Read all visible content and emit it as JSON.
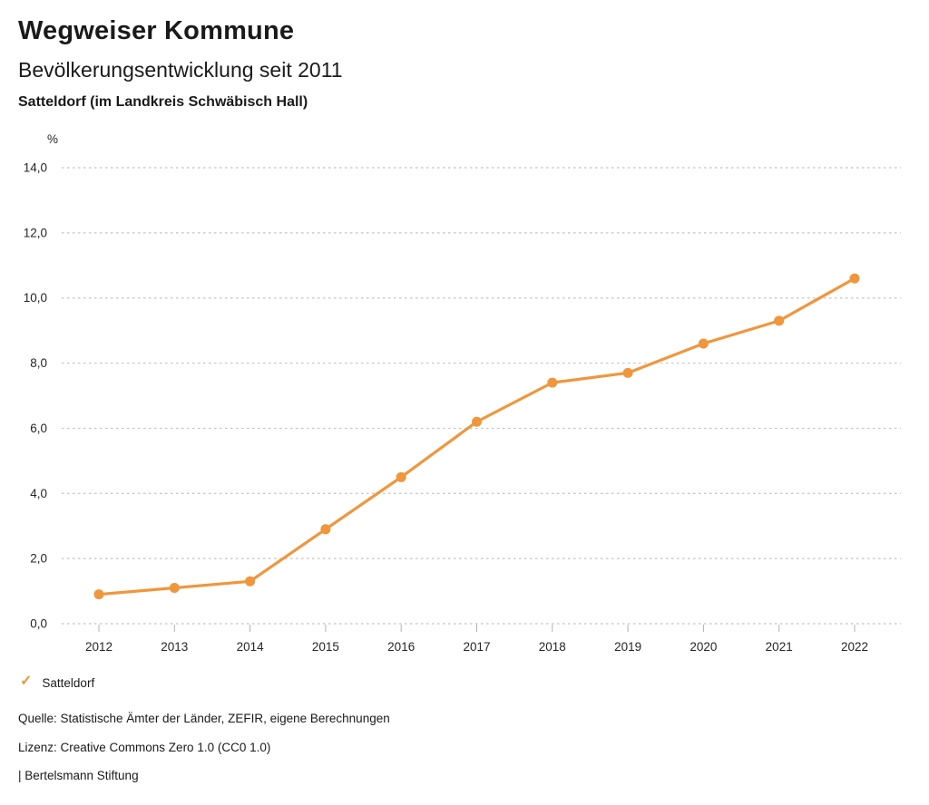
{
  "header": {
    "title": "Wegweiser Kommune",
    "subtitle": "Bevölkerungsentwicklung seit 2011",
    "location_line": "Satteldorf (im Landkreis Schwäbisch Hall)"
  },
  "chart_data": {
    "type": "line",
    "title": "Bevölkerungsentwicklung seit 2011",
    "subtitle": "Satteldorf (im Landkreis Schwäbisch Hall)",
    "ylabel": "%",
    "x": [
      2012,
      2013,
      2014,
      2015,
      2016,
      2017,
      2018,
      2019,
      2020,
      2021,
      2022
    ],
    "series": [
      {
        "name": "Satteldorf",
        "color": "#f0963c",
        "values": [
          0.9,
          1.1,
          1.3,
          2.9,
          4.5,
          6.2,
          7.4,
          7.7,
          8.6,
          9.3,
          10.6
        ]
      }
    ],
    "ylim": [
      0,
      14
    ],
    "ytick_step": 2,
    "ytick_labels": [
      "0,0",
      "2,0",
      "4,0",
      "6,0",
      "8,0",
      "10,0",
      "12,0",
      "14,0"
    ],
    "grid": "horizontal-dotted",
    "legend_position": "bottom-left"
  },
  "legend": {
    "items": [
      {
        "icon": "check-icon",
        "label": "Satteldorf",
        "color": "#f0963c"
      }
    ]
  },
  "footer": {
    "source": "Quelle: Statistische Ämter der Länder, ZEFIR, eigene Berechnungen",
    "license": "Lizenz: Creative Commons Zero 1.0 (CC0 1.0)",
    "attribution": "| Bertelsmann Stiftung"
  },
  "colors": {
    "accent": "#f0963c",
    "gridline": "#c2c2c2",
    "tick": "#b0b0b0",
    "text": "#1a1a1a",
    "background": "#ffffff"
  }
}
